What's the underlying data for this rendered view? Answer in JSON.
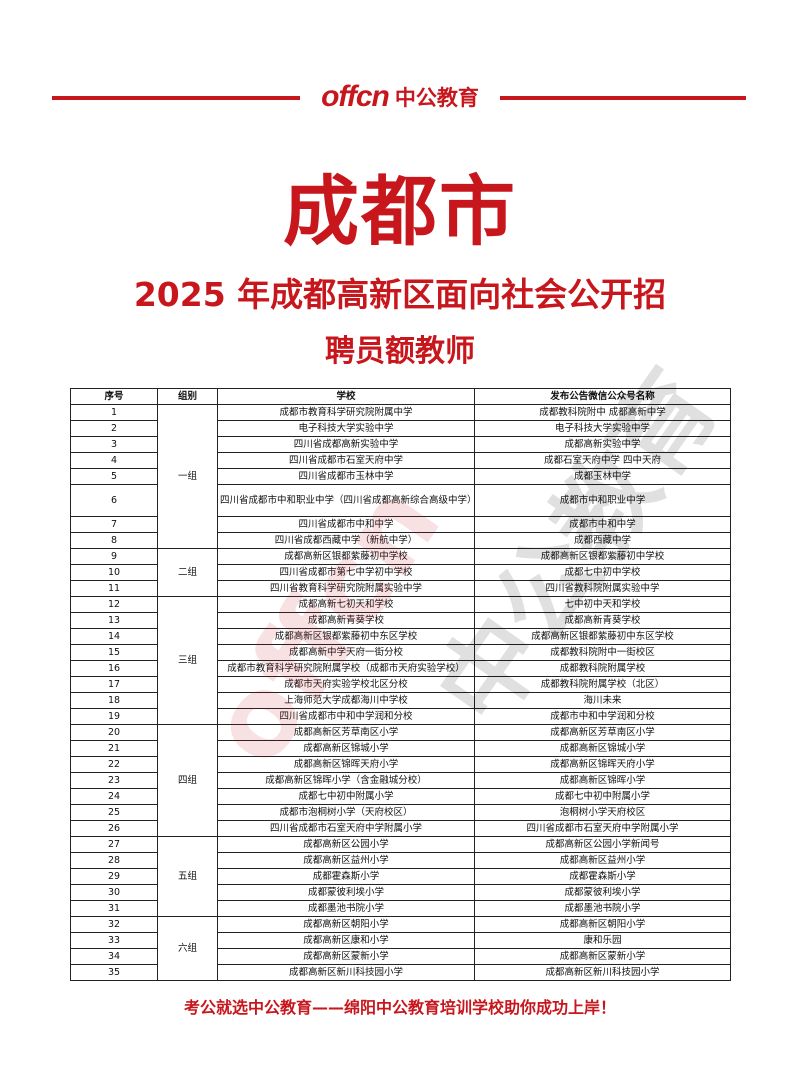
{
  "header": {
    "logo_en": "offcn",
    "logo_cn": "中公教育"
  },
  "title": "成都市",
  "subtitle_line1": "2025 年成都高新区面向社会公开招",
  "subtitle_line2": "聘员额教师",
  "table": {
    "columns": [
      "序号",
      "组别",
      "学校",
      "发布公告微信公众号名称"
    ],
    "groups": [
      {
        "name": "一组",
        "rows": [
          [
            "1",
            "成都市教育科学研究院附属中学",
            "成都教科院附中 成都高新中学"
          ],
          [
            "2",
            "电子科技大学实验中学",
            "电子科技大学实验中学"
          ],
          [
            "3",
            "四川省成都高新实验中学",
            "成都高新实验中学"
          ],
          [
            "4",
            "四川省成都市石室天府中学",
            "成都石室天府中学 四中天府"
          ],
          [
            "5",
            "四川省成都市玉林中学",
            "成都玉林中学"
          ],
          [
            "6",
            "四川省成都市中和职业中学（四川省成都高新综合高级中学）",
            "成都市中和职业中学"
          ],
          [
            "7",
            "四川省成都市中和中学",
            "成都市中和中学"
          ],
          [
            "8",
            "四川省成都西藏中学（新航中学）",
            "成都西藏中学"
          ]
        ]
      },
      {
        "name": "二组",
        "rows": [
          [
            "9",
            "成都高新区银都紫藤初中学校",
            "成都高新区银都紫藤初中学校"
          ],
          [
            "10",
            "四川省成都市第七中学初中学校",
            "成都七中初中学校"
          ],
          [
            "11",
            "四川省教育科学研究院附属实验中学",
            "四川省教科院附属实验中学"
          ]
        ]
      },
      {
        "name": "三组",
        "rows": [
          [
            "12",
            "成都高新七初天和学校",
            "七中初中天和学校"
          ],
          [
            "13",
            "成都高新青葵学校",
            "成都高新青葵学校"
          ],
          [
            "14",
            "成都高新区银都紫藤初中东区学校",
            "成都高新区银都紫藤初中东区学校"
          ],
          [
            "15",
            "成都高新中学天府一街分校",
            "成都教科院附中一街校区"
          ],
          [
            "16",
            "成都市教育科学研究院附属学校（成都市天府实验学校）",
            "成都教科院附属学校"
          ],
          [
            "17",
            "成都市天府实验学校北区分校",
            "成都教科院附属学校（北区）"
          ],
          [
            "18",
            "上海师范大学成都海川中学校",
            "海川未来"
          ],
          [
            "19",
            "四川省成都市中和中学润和分校",
            "成都市中和中学润和分校"
          ]
        ]
      },
      {
        "name": "四组",
        "rows": [
          [
            "20",
            "成都高新区芳草南区小学",
            "成都高新区芳草南区小学"
          ],
          [
            "21",
            "成都高新区锦城小学",
            "成都高新区锦城小学"
          ],
          [
            "22",
            "成都高新区锦晖天府小学",
            "成都高新区锦晖天府小学"
          ],
          [
            "23",
            "成都高新区锦晖小学（含金融城分校）",
            "成都高新区锦晖小学"
          ],
          [
            "24",
            "成都七中初中附属小学",
            "成都七中初中附属小学"
          ],
          [
            "25",
            "成都市泡桐树小学（天府校区）",
            "泡桐树小学天府校区"
          ],
          [
            "26",
            "四川省成都市石室天府中学附属小学",
            "四川省成都市石室天府中学附属小学"
          ]
        ]
      },
      {
        "name": "五组",
        "rows": [
          [
            "27",
            "成都高新区公园小学",
            "成都高新区公园小学新闻号"
          ],
          [
            "28",
            "成都高新区益州小学",
            "成都高新区益州小学"
          ],
          [
            "29",
            "成都霍森斯小学",
            "成都霍森斯小学"
          ],
          [
            "30",
            "成都蒙彼利埃小学",
            "成都蒙彼利埃小学"
          ],
          [
            "31",
            "成都墨池书院小学",
            "成都墨池书院小学"
          ]
        ]
      },
      {
        "name": "六组",
        "rows": [
          [
            "32",
            "成都高新区朝阳小学",
            "成都高新区朝阳小学"
          ],
          [
            "33",
            "成都高新区康和小学",
            "康和乐园"
          ],
          [
            "34",
            "成都高新区蒙新小学",
            "成都高新区蒙新小学"
          ],
          [
            "35",
            "成都高新区新川科技园小学",
            "成都高新区新川科技园小学"
          ]
        ]
      }
    ]
  },
  "footer": "考公就选中公教育——绵阳中公教育培训学校助你成功上岸！",
  "watermark": "offcn 中公教育",
  "colors": {
    "brand_red": "#c8161d"
  }
}
